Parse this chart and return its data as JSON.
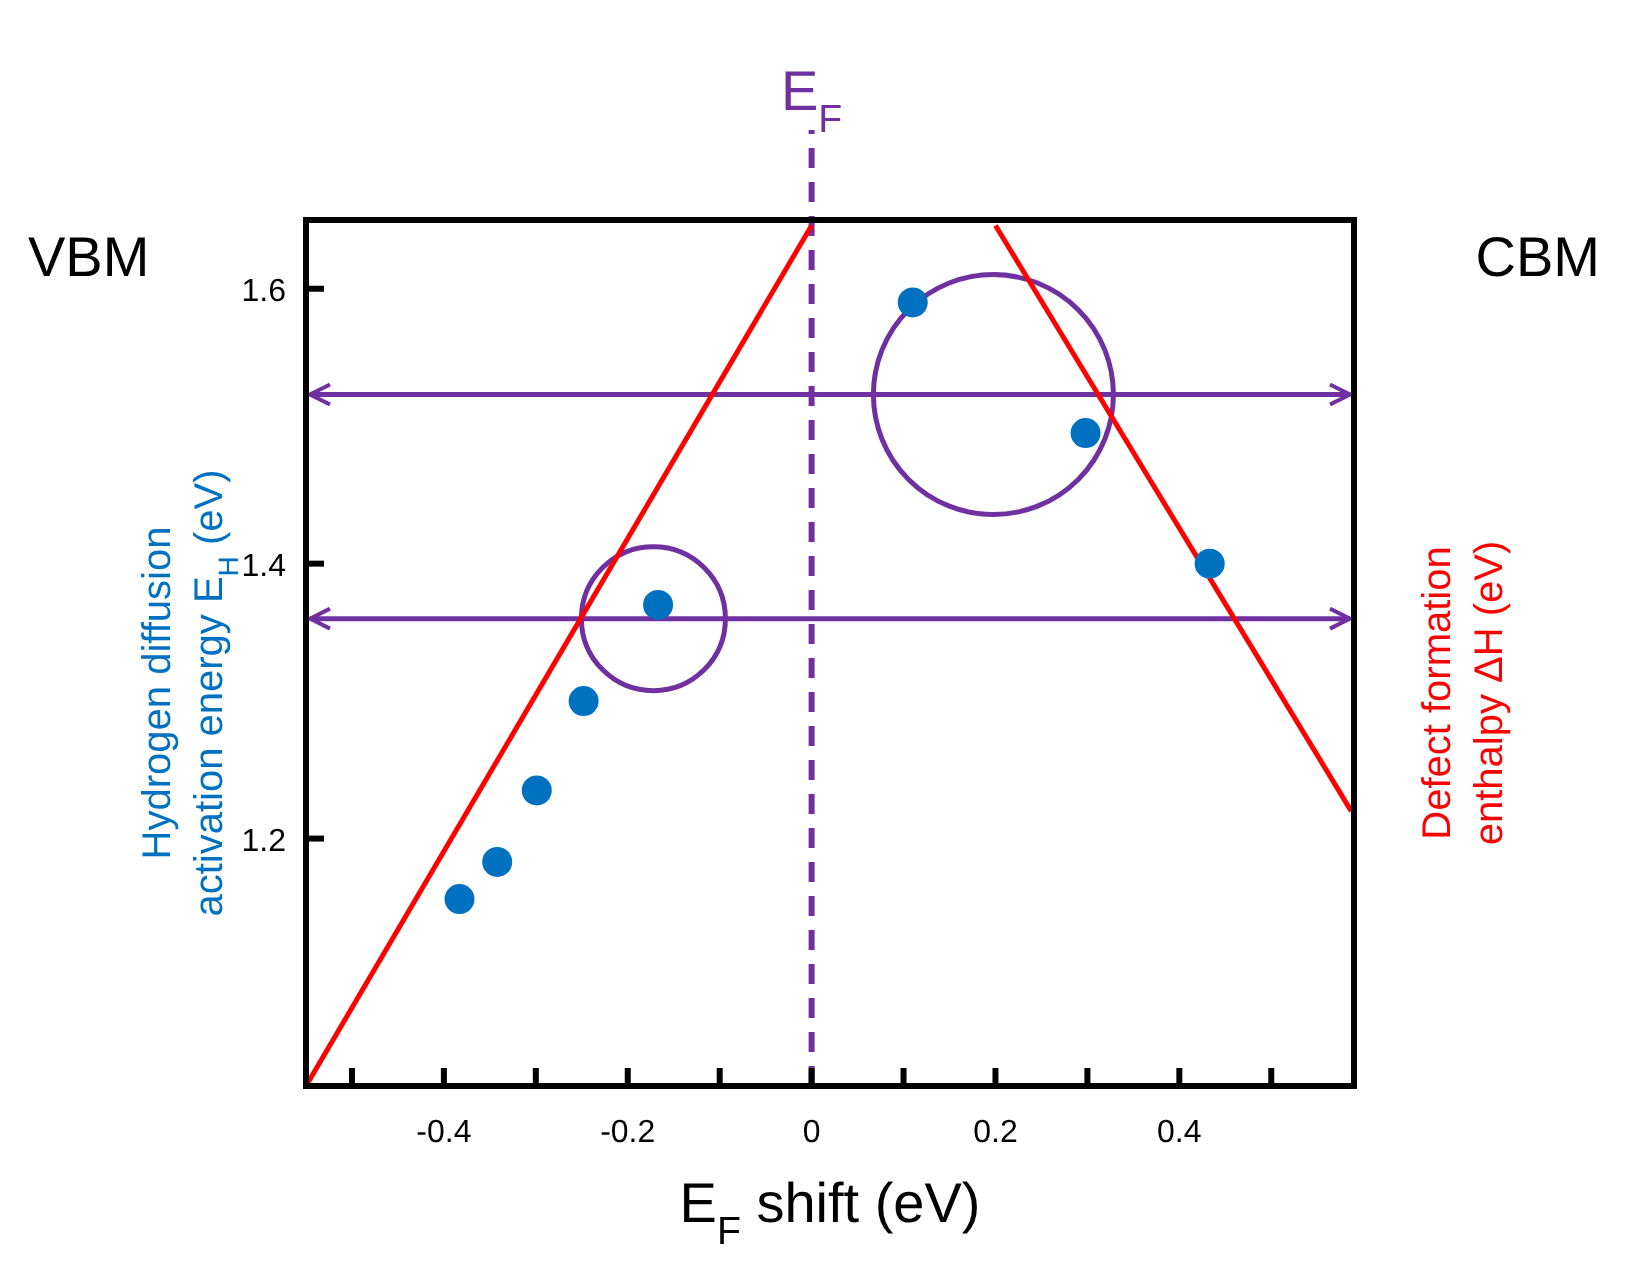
{
  "chart_data": {
    "type": "scatter",
    "xlabel": "E$_{F}$ shift (eV)",
    "ylabel": "Hydrogen diffusion activation energy E$_{H}$ (eV)",
    "y2label": "Defect formation enthalpy ΔH (eV)",
    "xlim": [
      -0.55,
      0.59
    ],
    "ylim": [
      1.02,
      1.65
    ],
    "xticks": [
      {
        "value": -0.5,
        "label": null
      },
      {
        "value": -0.4,
        "label": "-0.4"
      },
      {
        "value": -0.3,
        "label": null
      },
      {
        "value": -0.2,
        "label": "-0.2"
      },
      {
        "value": -0.1,
        "label": null
      },
      0,
      {
        "value": 0.1,
        "label": null
      },
      {
        "value": 0.2,
        "label": "0.2"
      },
      {
        "value": 0.3,
        "label": null
      },
      {
        "value": 0.4,
        "label": "0.4"
      },
      {
        "value": 0.5,
        "label": null
      }
    ],
    "yticks": [
      1.2,
      1.4,
      1.6
    ],
    "marker": "circle",
    "series": [
      {
        "color": "#0070c0",
        "x": [
          -0.383,
          -0.342,
          -0.299,
          -0.248,
          -0.167,
          0.11,
          0.298,
          0.433
        ],
        "values": [
          1.156,
          1.183,
          1.235,
          1.3,
          1.37,
          1.59,
          1.495,
          1.4
        ]
      },
      {
        "type": "line",
        "color": "#ff0000",
        "marker": "none",
        "x": [
          -0.55,
          0
        ],
        "values": [
          1.02,
          1.646
        ]
      },
      {
        "type": "line",
        "color": "#ff0000",
        "marker": "none",
        "x": [
          0.2,
          0.587
        ],
        "values": [
          1.646,
          1.22
        ]
      }
    ],
    "ref_lines": [
      {
        "axis": "x",
        "value": 0,
        "label": "E$_{F}$",
        "color": "#7030a0",
        "line_style": "dashed"
      },
      {
        "axis": "y",
        "value": 1.523,
        "label": null,
        "color": "#7030a0"
      },
      {
        "axis": "y",
        "value": 1.36,
        "label": null,
        "color": "#7030a0"
      }
    ],
    "annotations": [
      "VBM",
      "CBM"
    ]
  }
}
